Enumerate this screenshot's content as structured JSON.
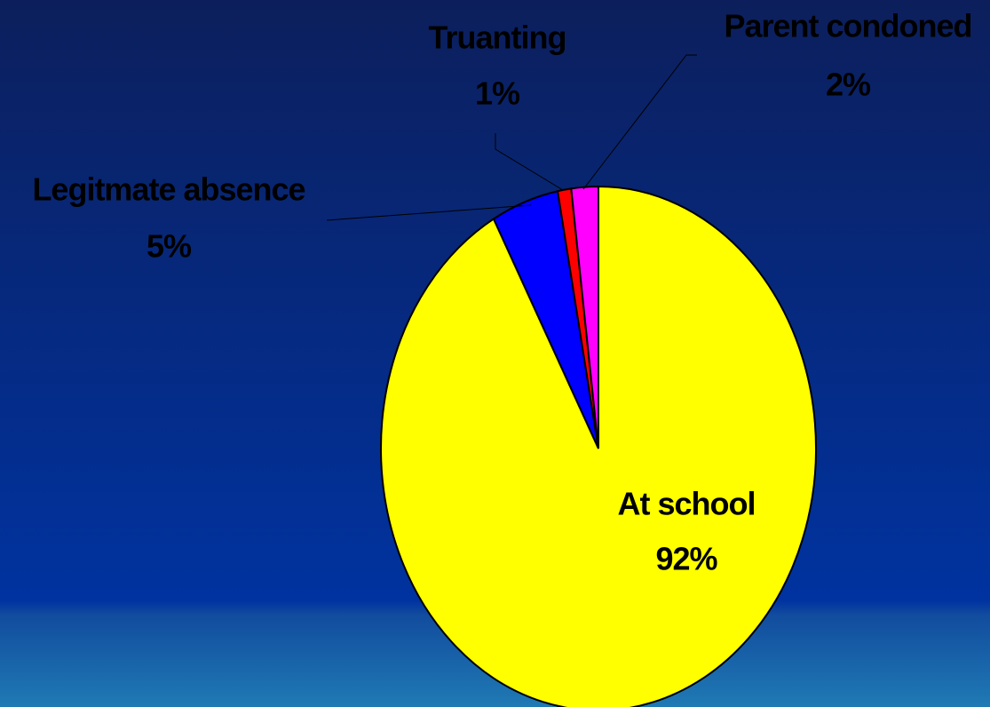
{
  "chart_data": {
    "type": "pie",
    "categories": [
      "At school",
      "Legitmate absence",
      "Truanting",
      "Parent condoned"
    ],
    "values": [
      92,
      5,
      1,
      2
    ],
    "value_labels": [
      "92%",
      "5%",
      "1%",
      "2%"
    ],
    "colors": [
      "#ffff00",
      "#0000ff",
      "#ff0000",
      "#ff00ff"
    ]
  }
}
